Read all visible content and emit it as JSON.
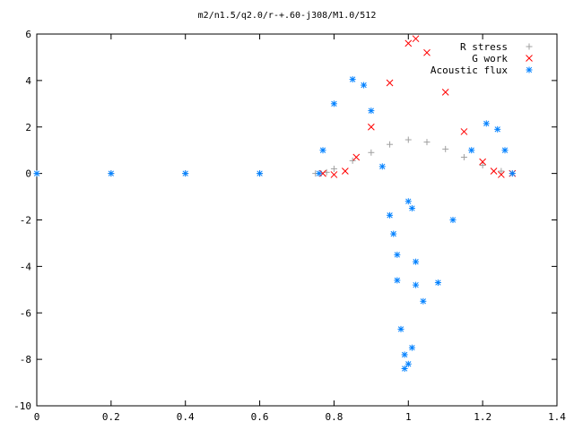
{
  "chart_data": {
    "type": "scatter",
    "title": "m2/n1.5/q2.0/r-+.60-j308/M1.0/512",
    "xlabel": "",
    "ylabel": "",
    "xlim": [
      0,
      1.4
    ],
    "ylim": [
      -10,
      6
    ],
    "x_ticks": [
      0,
      0.2,
      0.4,
      0.6,
      0.8,
      1,
      1.2,
      1.4
    ],
    "x_tick_labels": [
      "0",
      "0.2",
      "0.4",
      "0.6",
      "0.8",
      "1",
      "1.2",
      "1.4"
    ],
    "y_ticks": [
      -10,
      -8,
      -6,
      -4,
      -2,
      0,
      2,
      4,
      6
    ],
    "y_tick_labels": [
      "-10",
      "-8",
      "-6",
      "-4",
      "-2",
      "0",
      "2",
      "4",
      "6"
    ],
    "grid": false,
    "legend_position": "top-right",
    "series": [
      {
        "name": "R stress",
        "marker": "+",
        "color": "#a0a0a0",
        "points": [
          [
            0.0,
            0
          ],
          [
            0.2,
            0
          ],
          [
            0.4,
            0
          ],
          [
            0.6,
            0
          ],
          [
            0.75,
            0
          ],
          [
            0.78,
            0.05
          ],
          [
            0.8,
            0.2
          ],
          [
            0.85,
            0.55
          ],
          [
            0.9,
            0.9
          ],
          [
            0.95,
            1.25
          ],
          [
            1.0,
            1.45
          ],
          [
            1.05,
            1.35
          ],
          [
            1.1,
            1.05
          ],
          [
            1.15,
            0.7
          ],
          [
            1.2,
            0.35
          ],
          [
            1.25,
            0.1
          ],
          [
            1.28,
            0.0
          ]
        ]
      },
      {
        "name": "G work",
        "marker": "x",
        "color": "#ff0000",
        "points": [
          [
            0.77,
            0.0
          ],
          [
            0.8,
            -0.05
          ],
          [
            0.83,
            0.1
          ],
          [
            0.86,
            0.7
          ],
          [
            0.9,
            2.0
          ],
          [
            0.95,
            3.9
          ],
          [
            1.0,
            5.6
          ],
          [
            1.02,
            5.8
          ],
          [
            1.05,
            5.2
          ],
          [
            1.1,
            3.5
          ],
          [
            1.15,
            1.8
          ],
          [
            1.2,
            0.5
          ],
          [
            1.23,
            0.1
          ],
          [
            1.25,
            -0.05
          ],
          [
            1.28,
            0.0
          ]
        ]
      },
      {
        "name": "Acoustic flux",
        "marker": "*",
        "color": "#0080ff",
        "points": [
          [
            0.0,
            0
          ],
          [
            0.2,
            0
          ],
          [
            0.4,
            0
          ],
          [
            0.6,
            0
          ],
          [
            0.76,
            0
          ],
          [
            0.77,
            1.0
          ],
          [
            0.8,
            3.0
          ],
          [
            0.85,
            4.05
          ],
          [
            0.88,
            3.8
          ],
          [
            0.9,
            2.7
          ],
          [
            0.93,
            0.3
          ],
          [
            0.95,
            -1.8
          ],
          [
            0.97,
            -3.5
          ],
          [
            0.99,
            -8.4
          ],
          [
            1.01,
            -7.5
          ],
          [
            1.02,
            -4.8
          ],
          [
            1.04,
            -5.5
          ],
          [
            1.08,
            -4.7
          ],
          [
            1.12,
            -2.0
          ],
          [
            1.17,
            1.0
          ],
          [
            1.21,
            2.15
          ],
          [
            1.24,
            1.9
          ],
          [
            1.26,
            1.0
          ],
          [
            1.28,
            0.0
          ],
          [
            0.96,
            -2.6
          ],
          [
            0.97,
            -4.6
          ],
          [
            0.98,
            -6.7
          ],
          [
            1.0,
            -1.2
          ],
          [
            1.01,
            -1.5
          ],
          [
            1.02,
            -3.8
          ],
          [
            1.0,
            -8.2
          ],
          [
            0.99,
            -7.8
          ]
        ]
      }
    ]
  }
}
